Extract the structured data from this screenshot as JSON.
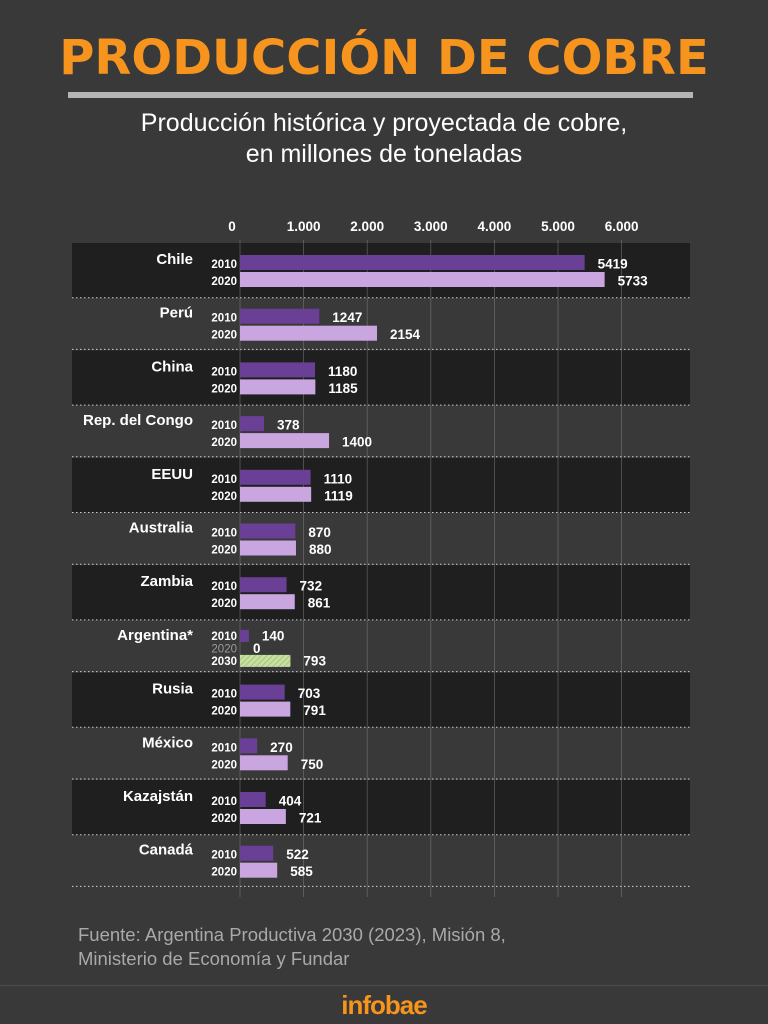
{
  "header": {
    "title": "PRODUCCIÓN DE COBRE",
    "subtitle_line1": "Producción histórica y proyectada de cobre,",
    "subtitle_line2": "en millones de toneladas"
  },
  "footer": {
    "source_line1": "Fuente: Argentina Productiva 2030 (2023), Misión 8,",
    "source_line2": "Ministerio de Economía y Fundar",
    "brand": "infobae"
  },
  "colors": {
    "background": "#393939",
    "band_dark": "#1f1f1f",
    "title": "#f7941d",
    "bar_2010": "#6a3f96",
    "bar_2020": "#c9a6e0",
    "bar_2030": "#c7e0a0"
  },
  "chart_data": {
    "type": "bar",
    "orientation": "horizontal",
    "title": "PRODUCCIÓN DE COBRE",
    "subtitle": "Producción histórica y proyectada de cobre, en millones de toneladas",
    "xlim": [
      0,
      6000
    ],
    "ticks": [
      0,
      1000,
      2000,
      3000,
      4000,
      5000,
      6000
    ],
    "tick_labels": [
      "0",
      "1.000",
      "2.000",
      "3.000",
      "4.000",
      "5.000",
      "6.000"
    ],
    "groups": [
      {
        "country": "Chile",
        "bars": [
          {
            "year": "2010",
            "value": 5419,
            "label": "5419"
          },
          {
            "year": "2020",
            "value": 5733,
            "label": "5733"
          }
        ]
      },
      {
        "country": "Perú",
        "bars": [
          {
            "year": "2010",
            "value": 1247,
            "label": "1247"
          },
          {
            "year": "2020",
            "value": 2154,
            "label": "2154"
          }
        ]
      },
      {
        "country": "China",
        "bars": [
          {
            "year": "2010",
            "value": 1180,
            "label": "1180"
          },
          {
            "year": "2020",
            "value": 1185,
            "label": "1185"
          }
        ]
      },
      {
        "country": "Rep. del Congo",
        "bars": [
          {
            "year": "2010",
            "value": 378,
            "label": "378"
          },
          {
            "year": "2020",
            "value": 1400,
            "label": "1400"
          }
        ]
      },
      {
        "country": "EEUU",
        "bars": [
          {
            "year": "2010",
            "value": 1110,
            "label": "1110"
          },
          {
            "year": "2020",
            "value": 1119,
            "label": "1119"
          }
        ]
      },
      {
        "country": "Australia",
        "bars": [
          {
            "year": "2010",
            "value": 870,
            "label": "870"
          },
          {
            "year": "2020",
            "value": 880,
            "label": "880"
          }
        ]
      },
      {
        "country": "Zambia",
        "bars": [
          {
            "year": "2010",
            "value": 732,
            "label": "732"
          },
          {
            "year": "2020",
            "value": 861,
            "label": "861"
          }
        ]
      },
      {
        "country": "Argentina*",
        "bars": [
          {
            "year": "2010",
            "value": 140,
            "label": "140"
          },
          {
            "year": "2020",
            "value": 0,
            "label": "0"
          },
          {
            "year": "2030",
            "value": 793,
            "label": "793"
          }
        ]
      },
      {
        "country": "Rusia",
        "bars": [
          {
            "year": "2010",
            "value": 703,
            "label": "703"
          },
          {
            "year": "2020",
            "value": 791,
            "label": "791"
          }
        ]
      },
      {
        "country": "México",
        "bars": [
          {
            "year": "2010",
            "value": 270,
            "label": "270"
          },
          {
            "year": "2020",
            "value": 750,
            "label": "750"
          }
        ]
      },
      {
        "country": "Kazajstán",
        "bars": [
          {
            "year": "2010",
            "value": 404,
            "label": "404"
          },
          {
            "year": "2020",
            "value": 721,
            "label": "721"
          }
        ]
      },
      {
        "country": "Canadá",
        "bars": [
          {
            "year": "2010",
            "value": 522,
            "label": "522"
          },
          {
            "year": "2020",
            "value": 585,
            "label": "585"
          }
        ]
      }
    ]
  }
}
